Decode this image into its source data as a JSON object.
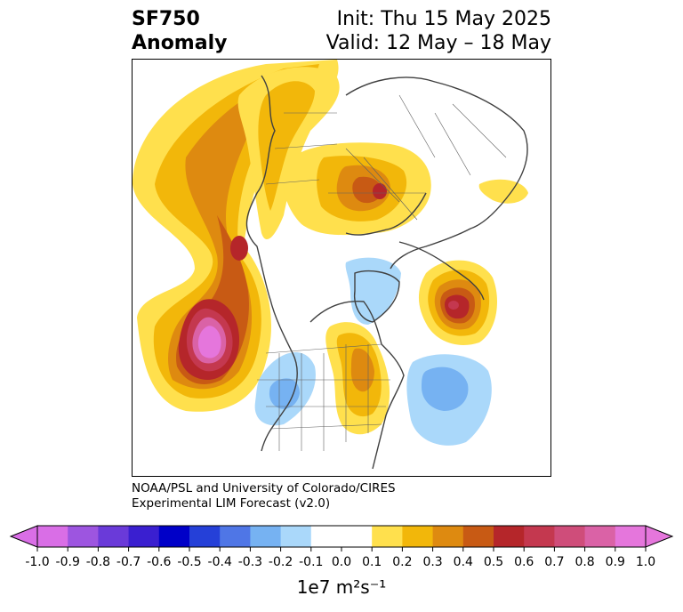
{
  "header": {
    "variable": "SF750",
    "kind": "Anomaly",
    "init_label": "Init: Thu 15 May 2025",
    "valid_label": "Valid: 12 May – 18 May"
  },
  "credit": {
    "line1": "NOAA/PSL and University of Colorado/CIRES",
    "line2": "Experimental LIM Forecast (v2.0)"
  },
  "colorbar": {
    "unit_label": "1e7 m²s⁻¹",
    "ticks": [
      "-1.0",
      "-0.9",
      "-0.8",
      "-0.7",
      "-0.6",
      "-0.5",
      "-0.4",
      "-0.3",
      "-0.2",
      "-0.1",
      "0.0",
      "0.1",
      "0.2",
      "0.3",
      "0.4",
      "0.5",
      "0.6",
      "0.7",
      "0.8",
      "0.9",
      "1.0"
    ],
    "colors": [
      "#d96ee6",
      "#9d55e0",
      "#6a3ad9",
      "#3a1fd0",
      "#0000c8",
      "#2540d8",
      "#4f76e6",
      "#76b2f2",
      "#aad8fa",
      "#ffffff",
      "#ffffff",
      "#ffe04d",
      "#f2b70a",
      "#de8a10",
      "#c85a14",
      "#b5262a",
      "#c4384f",
      "#cf4d7a",
      "#da62a6",
      "#e576dc"
    ],
    "extend_low_color": "#d96ee6",
    "extend_high_color": "#e576dc"
  },
  "map": {
    "projection": "north polar stereographic",
    "features": [
      "coastlines",
      "country borders",
      "state/province borders"
    ],
    "anomalies": [
      {
        "region": "North Pacific / Gulf of Alaska",
        "sign": "positive",
        "peak": 1.0
      },
      {
        "region": "Bering Sea",
        "sign": "positive",
        "peak": 0.6
      },
      {
        "region": "Siberia",
        "sign": "positive",
        "peak": 0.3
      },
      {
        "region": "Eastern Europe / Russia",
        "sign": "positive",
        "peak": 0.6
      },
      {
        "region": "Greenland / Atlantic (west of Scandinavia)",
        "sign": "positive",
        "peak": 0.6
      },
      {
        "region": "Central North America",
        "sign": "positive",
        "peak": 0.4
      },
      {
        "region": "Western United States",
        "sign": "negative",
        "peak": -0.4
      },
      {
        "region": "Western North Atlantic",
        "sign": "negative",
        "peak": -0.4
      },
      {
        "region": "Canadian Arctic / Baffin",
        "sign": "negative",
        "peak": -0.2
      }
    ]
  }
}
